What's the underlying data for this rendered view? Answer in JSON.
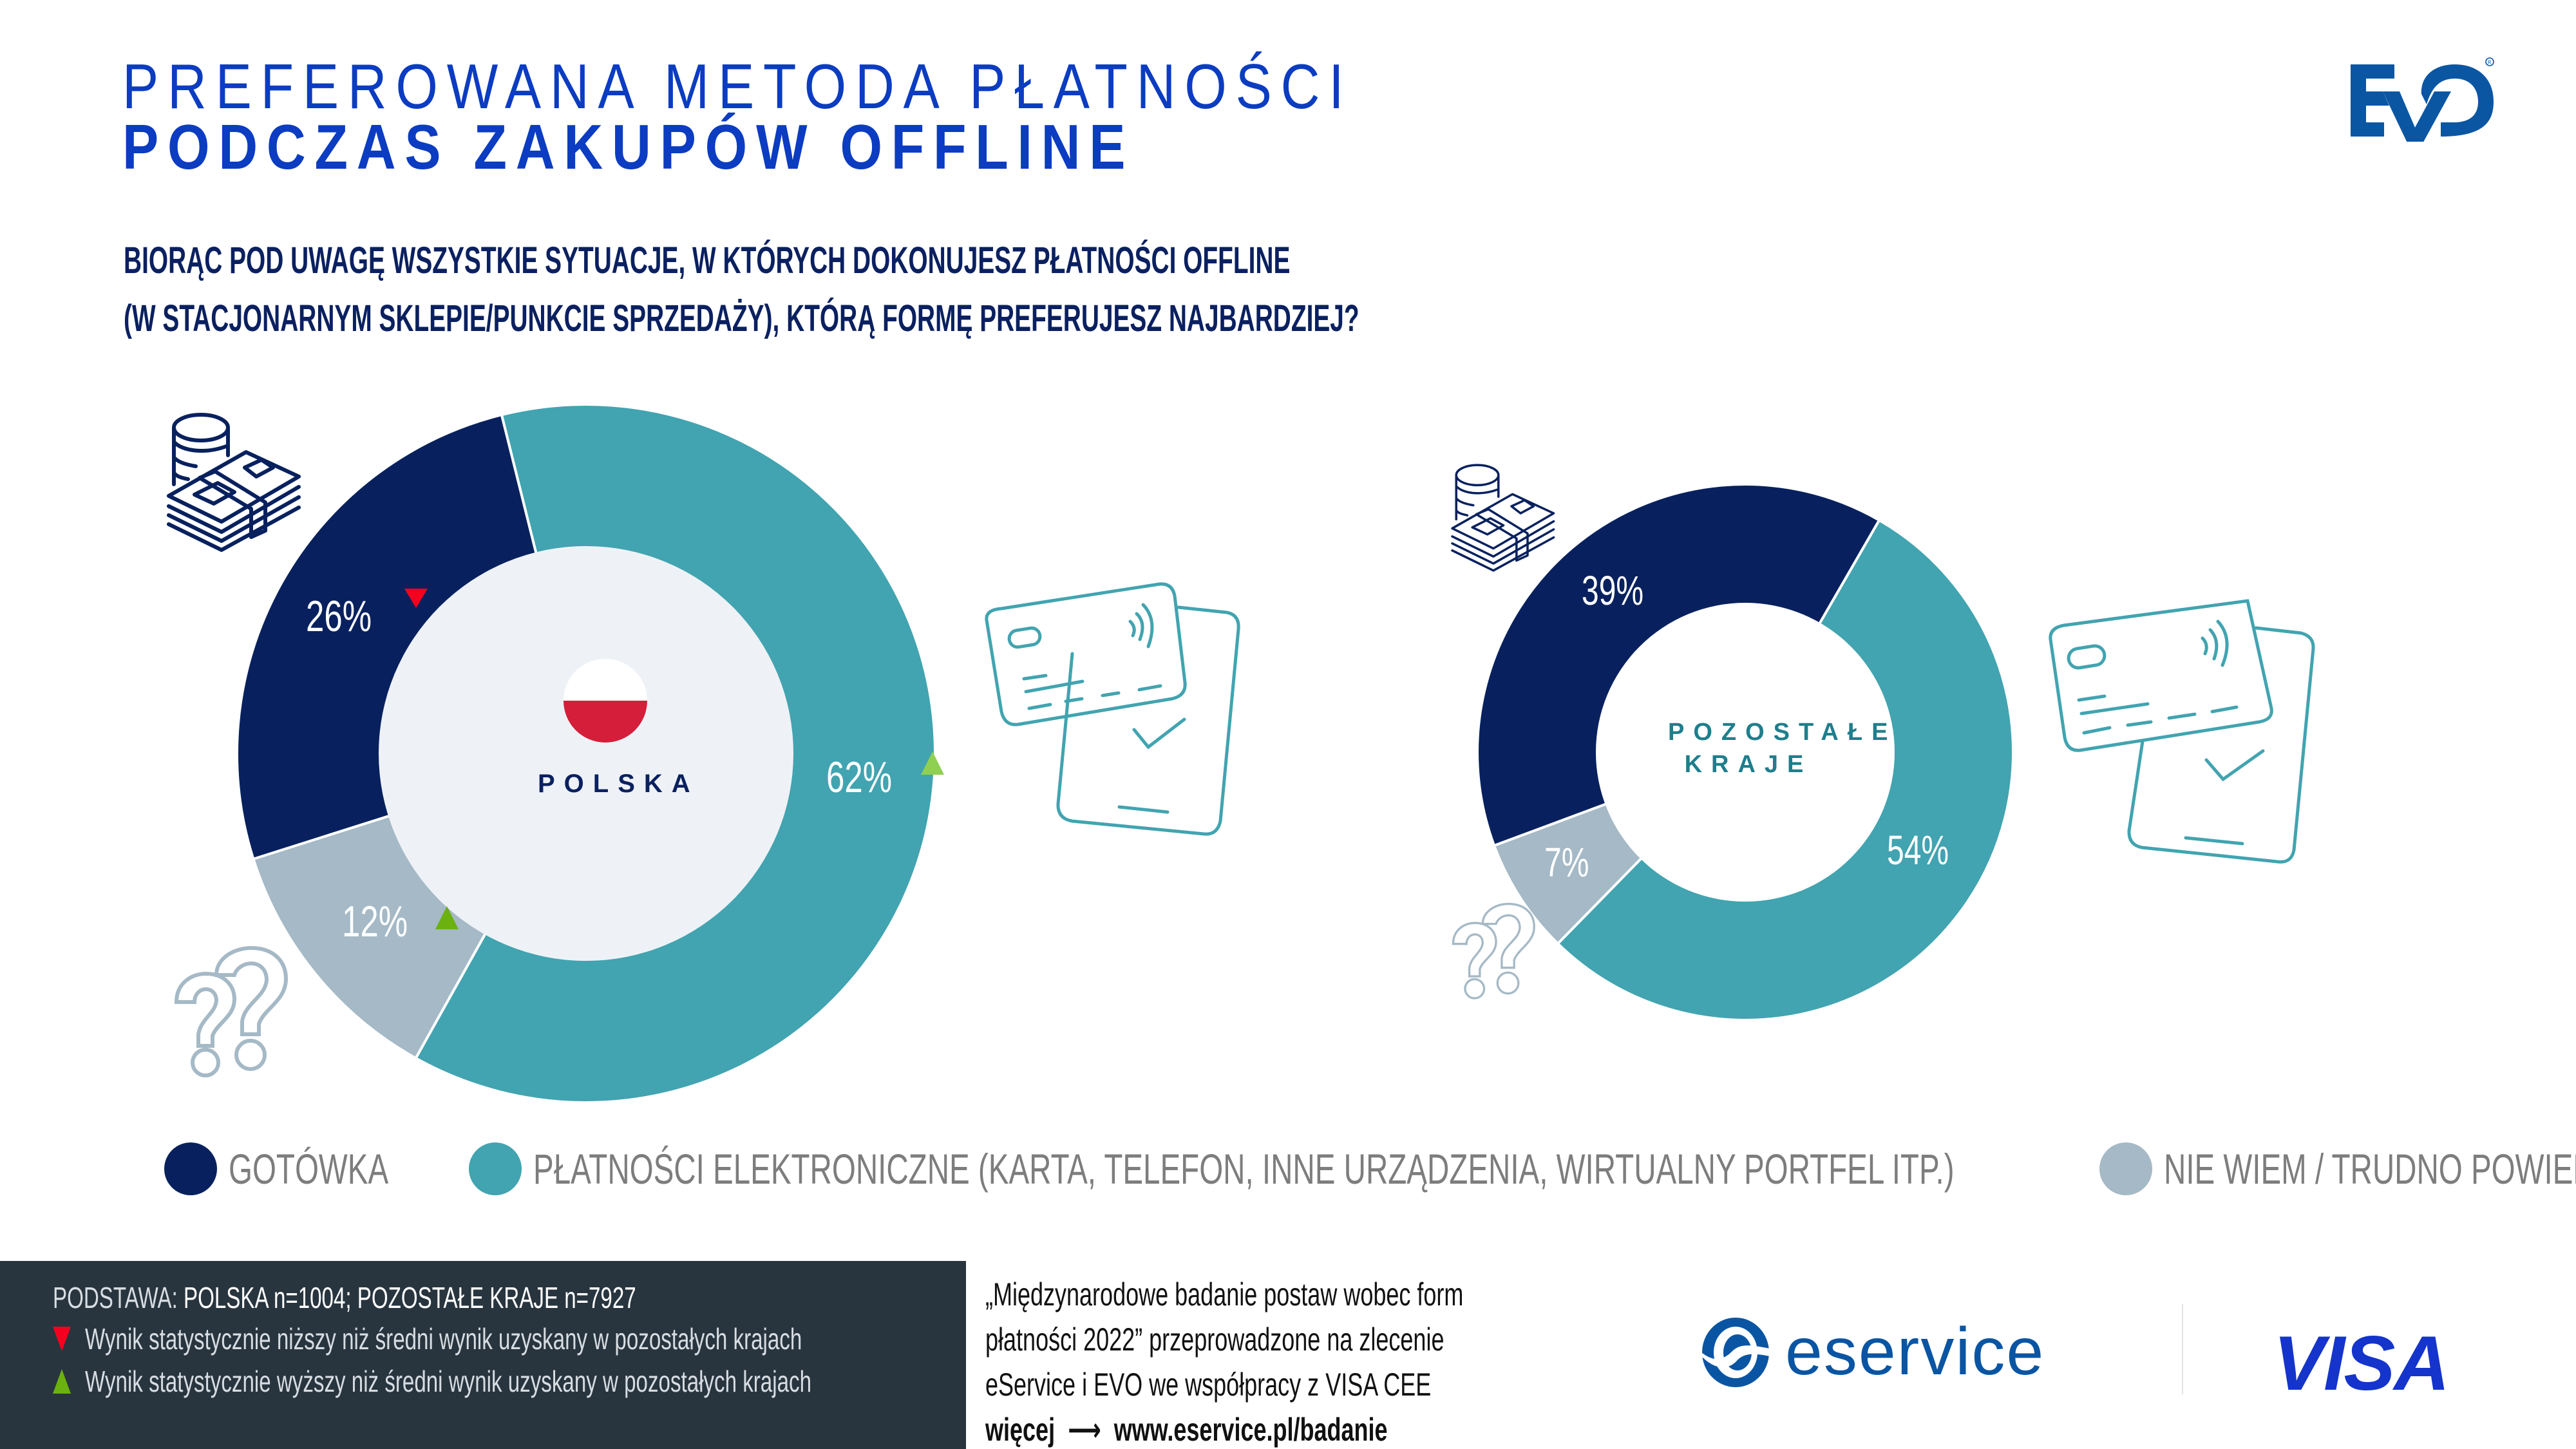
{
  "header": {
    "title_line1": "PREFEROWANA METODA PŁATNOŚCI",
    "title_line2": "PODCZAS ZAKUPÓW OFFLINE",
    "question_line1": "BIORĄC POD UWAGĘ WSZYSTKIE SYTUACJE, W KTÓRYCH DOKONUJESZ PŁATNOŚCI OFFLINE",
    "question_line2": "(W STACJONARNYM SKLEPIE/PUNKCIE SPRZEDAŻY), KTÓRĄ FORMĘ PREFERUJESZ NAJBARDZIEJ?",
    "logo": "EVO"
  },
  "colors": {
    "cash": "#08215E",
    "electronic": "#41A4B0",
    "dont_know": "#A5B9C6",
    "title": "#0B3CC1",
    "lower": "#F5001E",
    "higher": "#6BB10F"
  },
  "chart_data": [
    {
      "type": "pie",
      "subtype": "donut",
      "title": "POLSKA",
      "center_icon": "poland-flag-icon",
      "categories": [
        "GOTÓWKA",
        "PŁATNOŚCI ELEKTRONICZNE",
        "NIE WIEM / TRUDNO POWIEDZIEĆ"
      ],
      "values": [
        26,
        62,
        12
      ],
      "labels": [
        "26%",
        "62%",
        "12%"
      ],
      "significance": [
        "lower",
        "higher",
        "higher"
      ]
    },
    {
      "type": "pie",
      "subtype": "donut",
      "title": "POZOSTAŁE KRAJE",
      "categories": [
        "GOTÓWKA",
        "PŁATNOŚCI ELEKTRONICZNE",
        "NIE WIEM / TRUDNO POWIEDZIEĆ"
      ],
      "values": [
        39,
        54,
        7
      ],
      "labels": [
        "39%",
        "54%",
        "7%"
      ],
      "significance": [
        "none",
        "none",
        "none"
      ]
    }
  ],
  "legend": [
    {
      "label": "GOTÓWKA",
      "color_key": "cash"
    },
    {
      "label": "PŁATNOŚCI ELEKTRONICZNE (KARTA, TELEFON, INNE URZĄDZENIA, WIRTUALNY PORTFEL ITP.)",
      "color_key": "electronic"
    },
    {
      "label": "NIE WIEM / TRUDNO POWIEDZIEĆ",
      "color_key": "dont_know"
    }
  ],
  "icons": [
    "cash-stack-icon",
    "card-phone-payment-icon",
    "question-marks-icon"
  ],
  "footer": {
    "basis_prefix": "PODSTAWA: ",
    "basis_value": "POLSKA n=1004; POZOSTAŁE KRAJE n=7927",
    "note_lower": "Wynik statystycznie niższy niż średni wynik uzyskany w pozostałych krajach",
    "note_higher": "Wynik statystycznie wyższy niż średni wynik uzyskany w pozostałych krajach",
    "source_line1": "„Międzynarodowe badanie postaw wobec form",
    "source_line2": "płatności 2022” przeprowadzone na zlecenie",
    "source_line3": "eService i EVO we współpracy z VISA CEE",
    "more_label": "więcej",
    "more_url": "www.eservice.pl/badanie",
    "brand_eservice": "eservice",
    "brand_visa": "VISA"
  }
}
